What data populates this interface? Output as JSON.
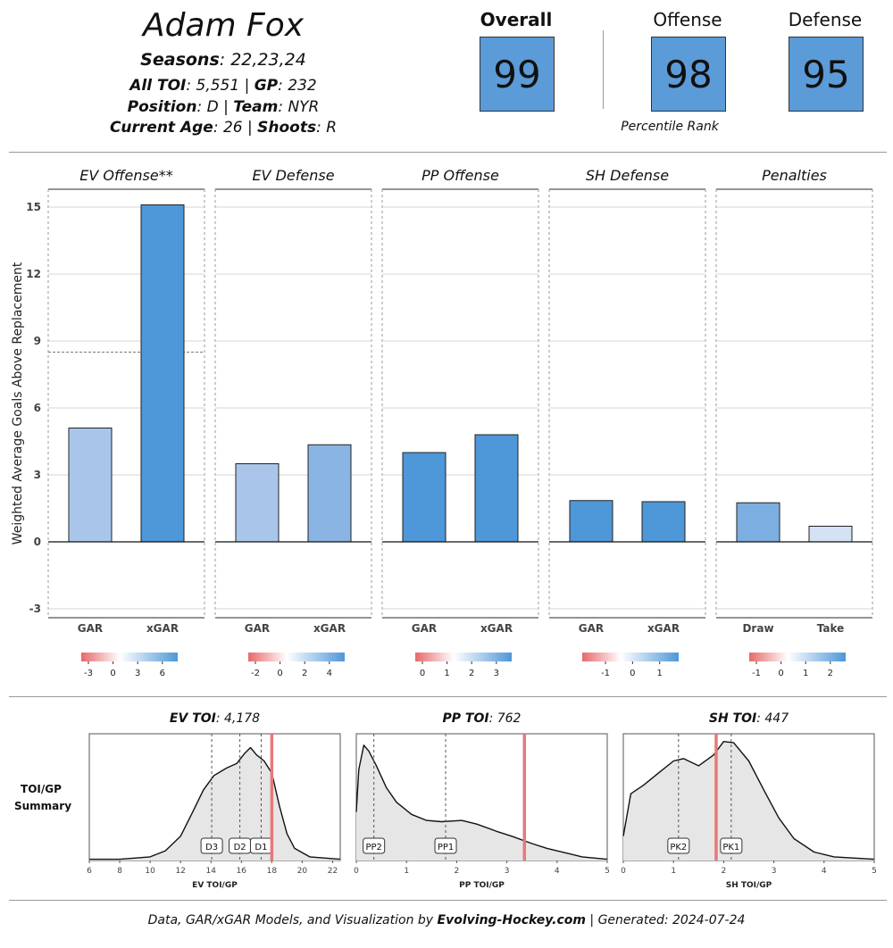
{
  "player": {
    "name": "Adam Fox",
    "seasons_label": "Seasons",
    "seasons": ": 22,23,24",
    "toi_label": "All TOI",
    "toi": ": 5,551 | ",
    "gp_label": "GP",
    "gp": ": 232",
    "position_label": "Position",
    "position": ": D | ",
    "team_label": "Team",
    "team": ": NYR",
    "age_label": "Current Age",
    "age": ": 26 | ",
    "shoots_label": "Shoots",
    "shoots": ": R"
  },
  "ranks": {
    "overall_label": "Overall",
    "overall": "99",
    "offense_label": "Offense",
    "offense": "98",
    "defense_label": "Defense",
    "defense": "95",
    "percentile_label": "Percentile Rank"
  },
  "chart_data": [
    {
      "type": "bar",
      "ylabel": "Weighted Average Goals Above Replacement",
      "ylim": [
        -3.4,
        15.8
      ],
      "yticks": [
        -3,
        0,
        3,
        6,
        9,
        12,
        15
      ],
      "reference_line": 8.5,
      "panels": [
        {
          "title": "EV Offense**",
          "categories": [
            "GAR",
            "xGAR"
          ],
          "values": [
            5.1,
            15.1
          ],
          "colors": [
            "#a9c6ea",
            "#4e97d8"
          ],
          "legend_ticks": [
            "-3",
            "0",
            "3",
            "6"
          ]
        },
        {
          "title": "EV Defense",
          "categories": [
            "GAR",
            "xGAR"
          ],
          "values": [
            3.5,
            4.35
          ],
          "colors": [
            "#a9c6ea",
            "#8ab4e3"
          ],
          "legend_ticks": [
            "-2",
            "0",
            "2",
            "4"
          ]
        },
        {
          "title": "PP Offense",
          "categories": [
            "GAR",
            "xGAR"
          ],
          "values": [
            4.0,
            4.8
          ],
          "colors": [
            "#4e97d8",
            "#4e97d8"
          ],
          "legend_ticks": [
            "0",
            "1",
            "2",
            "3"
          ]
        },
        {
          "title": "SH Defense",
          "categories": [
            "GAR",
            "xGAR"
          ],
          "values": [
            1.85,
            1.8
          ],
          "colors": [
            "#4e97d8",
            "#4e97d8"
          ],
          "legend_ticks": [
            "-1",
            "0",
            "1"
          ]
        },
        {
          "title": "Penalties",
          "categories": [
            "Draw",
            "Take"
          ],
          "values": [
            1.75,
            0.7
          ],
          "colors": [
            "#7caee1",
            "#d3e2f5"
          ],
          "legend_ticks": [
            "-1",
            "0",
            "1",
            "2"
          ]
        }
      ]
    },
    {
      "type": "area",
      "side_label_1": "TOI/GP",
      "side_label_2": "Summary",
      "panels": [
        {
          "title_bold": "EV TOI",
          "title_rest": ": 4,178",
          "xlabel": "EV TOI/GP",
          "xlim": [
            6,
            22.5
          ],
          "xticks": [
            6,
            8,
            10,
            12,
            14,
            16,
            18,
            20,
            22
          ],
          "player_value": 18.0,
          "markers": [
            {
              "label": "D3",
              "x": 14.05
            },
            {
              "label": "D2",
              "x": 15.9
            },
            {
              "label": "D1",
              "x": 17.3
            }
          ],
          "density": [
            [
              6,
              0.01
            ],
            [
              8,
              0.01
            ],
            [
              10,
              0.03
            ],
            [
              11,
              0.08
            ],
            [
              12,
              0.2
            ],
            [
              12.8,
              0.4
            ],
            [
              13.5,
              0.58
            ],
            [
              14.2,
              0.7
            ],
            [
              15,
              0.76
            ],
            [
              15.7,
              0.8
            ],
            [
              16.2,
              0.88
            ],
            [
              16.6,
              0.93
            ],
            [
              17,
              0.87
            ],
            [
              17.5,
              0.82
            ],
            [
              18,
              0.72
            ],
            [
              18.5,
              0.45
            ],
            [
              19,
              0.22
            ],
            [
              19.5,
              0.1
            ],
            [
              20.5,
              0.03
            ],
            [
              22.5,
              0.01
            ]
          ]
        },
        {
          "title_bold": "PP TOI",
          "title_rest": ": 762",
          "xlabel": "PP TOI/GP",
          "xlim": [
            0,
            5
          ],
          "xticks": [
            0,
            1,
            2,
            3,
            4,
            5
          ],
          "player_value": 3.35,
          "markers": [
            {
              "label": "PP2",
              "x": 0.35
            },
            {
              "label": "PP1",
              "x": 1.78
            }
          ],
          "density": [
            [
              0,
              0.4
            ],
            [
              0.05,
              0.75
            ],
            [
              0.15,
              0.95
            ],
            [
              0.25,
              0.9
            ],
            [
              0.4,
              0.78
            ],
            [
              0.6,
              0.6
            ],
            [
              0.8,
              0.48
            ],
            [
              1.1,
              0.38
            ],
            [
              1.4,
              0.33
            ],
            [
              1.7,
              0.32
            ],
            [
              2.1,
              0.33
            ],
            [
              2.4,
              0.3
            ],
            [
              2.8,
              0.24
            ],
            [
              3.1,
              0.2
            ],
            [
              3.5,
              0.14
            ],
            [
              3.8,
              0.1
            ],
            [
              4.2,
              0.06
            ],
            [
              4.5,
              0.03
            ],
            [
              5,
              0.01
            ]
          ]
        },
        {
          "title_bold": "SH TOI",
          "title_rest": ": 447",
          "xlabel": "SH TOI/GP",
          "xlim": [
            0,
            5
          ],
          "xticks": [
            0,
            1,
            2,
            3,
            4,
            5
          ],
          "player_value": 1.85,
          "markers": [
            {
              "label": "PK2",
              "x": 1.1
            },
            {
              "label": "PK1",
              "x": 2.15
            }
          ],
          "density": [
            [
              0,
              0.2
            ],
            [
              0.15,
              0.55
            ],
            [
              0.4,
              0.62
            ],
            [
              0.7,
              0.72
            ],
            [
              1.0,
              0.82
            ],
            [
              1.2,
              0.84
            ],
            [
              1.5,
              0.78
            ],
            [
              1.8,
              0.87
            ],
            [
              2.0,
              0.98
            ],
            [
              2.2,
              0.97
            ],
            [
              2.5,
              0.82
            ],
            [
              2.8,
              0.58
            ],
            [
              3.1,
              0.35
            ],
            [
              3.4,
              0.18
            ],
            [
              3.8,
              0.07
            ],
            [
              4.2,
              0.03
            ],
            [
              5,
              0.01
            ]
          ]
        }
      ]
    }
  ],
  "footer": {
    "prefix": "Data, GAR/xGAR Models, and Visualization by ",
    "brand": "Evolving-Hockey.com",
    "suffix": " | Generated: 2024-07-24"
  }
}
